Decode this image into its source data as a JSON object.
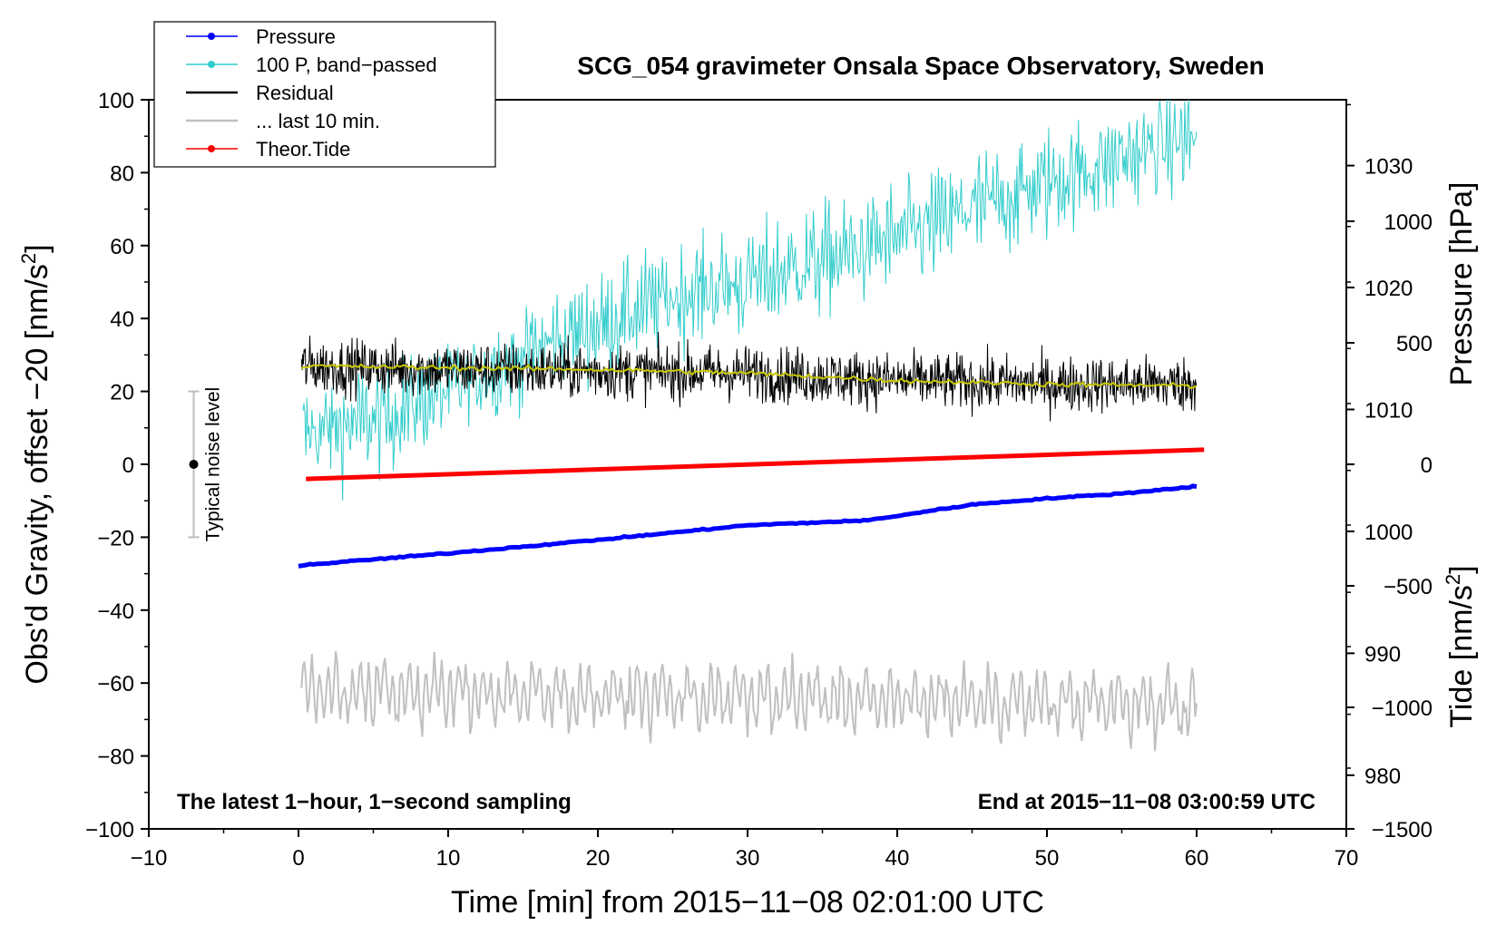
{
  "chart_data": {
    "type": "line",
    "title": "SCG_054 gravimeter Onsala Space Observatory, Sweden",
    "xlabel": "Time [min] from 2015−11−08 02:01:00 UTC",
    "ylabel_left_main": "Obs'd Gravity, offset −20 [nm/s",
    "ylabel_left_sup": "2",
    "ylabel_left_end": "]",
    "ylabel_right_pressure": "Pressure [hPa]",
    "ylabel_right_tide_main": "Tide [nm/s",
    "ylabel_right_tide_sup": "2",
    "ylabel_right_tide_end": "]",
    "xlim": [
      -10,
      70
    ],
    "ylim": [
      -100,
      100
    ],
    "pressure_lim": [
      975.6,
      1035.4
    ],
    "tide_lim": [
      -1500,
      1500
    ],
    "x_ticks": [
      "−10",
      "0",
      "10",
      "20",
      "30",
      "40",
      "50",
      "60",
      "70"
    ],
    "y_ticks": [
      "−100",
      "−80",
      "−60",
      "−40",
      "−20",
      "0",
      "20",
      "40",
      "60",
      "80",
      "100"
    ],
    "pressure_ticks": [
      "980",
      "990",
      "1000",
      "1010",
      "1020",
      "1030"
    ],
    "tide_ticks": [
      "−1500",
      "−1000",
      "−500",
      "0",
      "500",
      "1000"
    ],
    "annotation_left": "The latest 1−hour, 1−second sampling",
    "annotation_right": "End at 2015−11−08 03:00:59 UTC",
    "noise_bar": {
      "label": "Typical noise level",
      "x": -7,
      "center": 0,
      "low": -20,
      "high": 20
    },
    "legend": [
      {
        "label": "Pressure",
        "color": "#0000ff",
        "marker": true
      },
      {
        "label": "100 P, band−passed",
        "color": "#33cccc",
        "marker": true
      },
      {
        "label": "Residual",
        "color": "#000000",
        "marker": false
      },
      {
        "label": "... last 10 min.",
        "color": "#c0c0c0",
        "marker": false
      },
      {
        "label": "Theor.Tide",
        "color": "#ff0000",
        "marker": true
      }
    ],
    "series": [
      {
        "name": "Pressure",
        "axis": "pressure",
        "color": "#0000ff",
        "x": [
          0,
          10,
          20,
          30,
          38,
          45,
          50,
          55,
          60
        ],
        "values": [
          997.2,
          998.2,
          999.3,
          1000.5,
          1000.9,
          1002.2,
          1002.7,
          1003.1,
          1003.7
        ]
      },
      {
        "name": "100 P, band-passed",
        "axis": "gravity",
        "color": "#33cccc",
        "x": [
          0,
          5,
          10,
          15,
          20,
          25,
          30,
          35,
          40,
          45,
          50,
          55,
          60
        ],
        "values": [
          8,
          12,
          20,
          30,
          38,
          46,
          50,
          56,
          62,
          70,
          77,
          84,
          90
        ]
      },
      {
        "name": "Residual",
        "axis": "gravity",
        "color": "#000000",
        "x": [
          0,
          10,
          20,
          30,
          40,
          50,
          60
        ],
        "values": [
          27,
          26,
          25.5,
          25,
          23,
          22,
          22
        ]
      },
      {
        "name": "Residual smoothed",
        "axis": "gravity",
        "color": "#c8c800",
        "x": [
          0,
          10,
          20,
          30,
          40,
          50,
          60
        ],
        "values": [
          27,
          26.5,
          26,
          25,
          23,
          22,
          21.5
        ]
      },
      {
        "name": "... last 10 min.",
        "axis": "gravity",
        "color": "#c0c0c0",
        "x": [
          0,
          60
        ],
        "values": [
          -62,
          -66
        ]
      },
      {
        "name": "Theor.Tide",
        "axis": "tide",
        "color": "#ff0000",
        "x": [
          0.5,
          60.5
        ],
        "values": [
          -60,
          60
        ]
      }
    ]
  }
}
